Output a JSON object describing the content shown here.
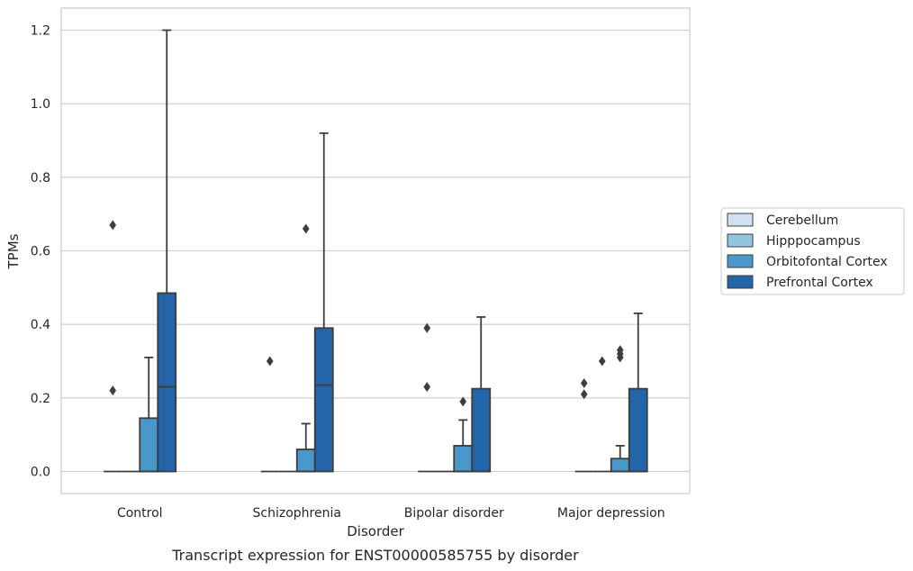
{
  "chart_data": {
    "type": "box",
    "caption": "Transcript expression for ENST00000585755 by disorder",
    "xlabel": "Disorder",
    "ylabel": "TPMs",
    "ylim": [
      -0.06,
      1.26
    ],
    "yticks": [
      0.0,
      0.2,
      0.4,
      0.6,
      0.8,
      1.0,
      1.2
    ],
    "ytick_labels": [
      "0.0",
      "0.2",
      "0.4",
      "0.6",
      "0.8",
      "1.0",
      "1.2"
    ],
    "grid": true,
    "legend_position": "right",
    "categories": [
      "Control",
      "Schizophrenia",
      "Bipolar disorder",
      "Major depression"
    ],
    "series": [
      {
        "name": "Cerebellum",
        "color": "#d0e1f2",
        "boxes": [
          {
            "q1": 0,
            "median": 0,
            "q3": 0,
            "whisker_low": 0,
            "whisker_high": 0,
            "outliers": [
              0.22,
              0.67
            ]
          },
          {
            "q1": 0,
            "median": 0,
            "q3": 0,
            "whisker_low": 0,
            "whisker_high": 0,
            "outliers": [
              0.3
            ]
          },
          {
            "q1": 0,
            "median": 0,
            "q3": 0,
            "whisker_low": 0,
            "whisker_high": 0,
            "outliers": [
              0.23,
              0.39
            ]
          },
          {
            "q1": 0,
            "median": 0,
            "q3": 0,
            "whisker_low": 0,
            "whisker_high": 0,
            "outliers": [
              0.21,
              0.24
            ]
          }
        ]
      },
      {
        "name": "Hipppocampus",
        "color": "#94c4df",
        "boxes": [
          {
            "q1": 0,
            "median": 0,
            "q3": 0,
            "whisker_low": 0,
            "whisker_high": 0,
            "outliers": []
          },
          {
            "q1": 0,
            "median": 0,
            "q3": 0,
            "whisker_low": 0,
            "whisker_high": 0,
            "outliers": []
          },
          {
            "q1": 0,
            "median": 0,
            "q3": 0,
            "whisker_low": 0,
            "whisker_high": 0,
            "outliers": []
          },
          {
            "q1": 0,
            "median": 0,
            "q3": 0,
            "whisker_low": 0,
            "whisker_high": 0,
            "outliers": [
              0.3
            ]
          }
        ]
      },
      {
        "name": "Orbitofontal Cortex",
        "color": "#4a98c9",
        "boxes": [
          {
            "q1": 0,
            "median": 0,
            "q3": 0.145,
            "whisker_low": 0,
            "whisker_high": 0.31,
            "outliers": []
          },
          {
            "q1": 0,
            "median": 0,
            "q3": 0.06,
            "whisker_low": 0,
            "whisker_high": 0.13,
            "outliers": [
              0.66
            ]
          },
          {
            "q1": 0,
            "median": 0,
            "q3": 0.07,
            "whisker_low": 0,
            "whisker_high": 0.14,
            "outliers": [
              0.19
            ]
          },
          {
            "q1": 0,
            "median": 0,
            "q3": 0.035,
            "whisker_low": 0,
            "whisker_high": 0.07,
            "outliers": [
              0.31,
              0.32,
              0.33
            ]
          }
        ]
      },
      {
        "name": "Prefrontal Cortex",
        "color": "#2464a8",
        "boxes": [
          {
            "q1": 0,
            "median": 0.23,
            "q3": 0.485,
            "whisker_low": 0,
            "whisker_high": 1.2,
            "outliers": []
          },
          {
            "q1": 0,
            "median": 0.235,
            "q3": 0.39,
            "whisker_low": 0,
            "whisker_high": 0.92,
            "outliers": []
          },
          {
            "q1": 0,
            "median": 0,
            "q3": 0.225,
            "whisker_low": 0,
            "whisker_high": 0.42,
            "outliers": []
          },
          {
            "q1": 0,
            "median": 0,
            "q3": 0.225,
            "whisker_low": 0,
            "whisker_high": 0.43,
            "outliers": []
          }
        ]
      }
    ]
  }
}
